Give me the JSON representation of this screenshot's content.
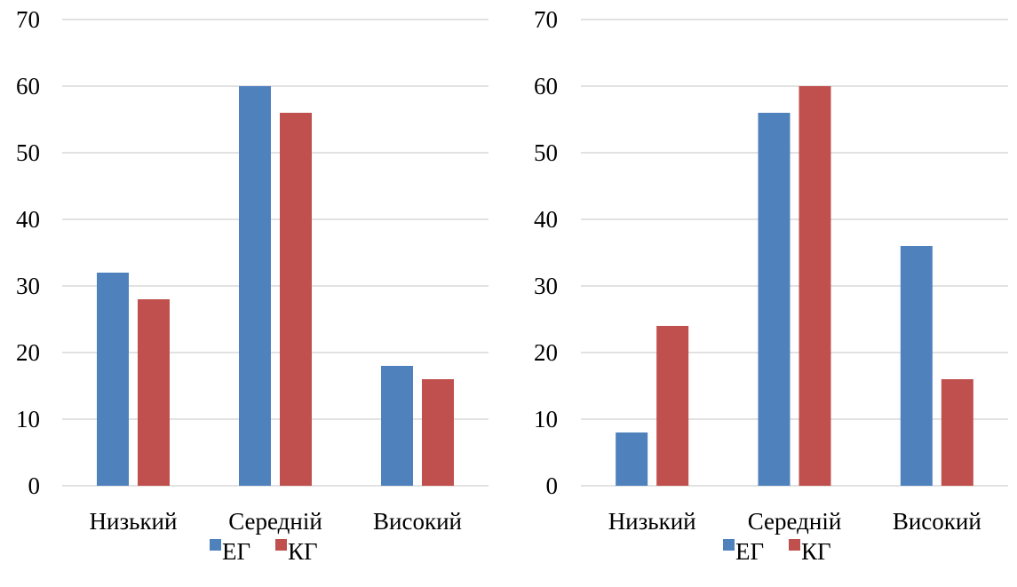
{
  "chart_data": [
    {
      "type": "bar",
      "categories": [
        "Низький",
        "Середній",
        "Високий"
      ],
      "series": [
        {
          "name": "ЕГ",
          "color": "#4F81BD",
          "values": [
            32,
            60,
            18
          ]
        },
        {
          "name": "КГ",
          "color": "#C0504D",
          "values": [
            28,
            56,
            16
          ]
        }
      ],
      "ylim": [
        0,
        70
      ],
      "yticks": [
        0,
        10,
        20,
        30,
        40,
        50,
        60,
        70
      ],
      "grid": true,
      "legend": "bottom"
    },
    {
      "type": "bar",
      "categories": [
        "Низький",
        "Середній",
        "Високий"
      ],
      "series": [
        {
          "name": "ЕГ",
          "color": "#4F81BD",
          "values": [
            8,
            56,
            36
          ]
        },
        {
          "name": "КГ",
          "color": "#C0504D",
          "values": [
            24,
            60,
            16
          ]
        }
      ],
      "ylim": [
        0,
        70
      ],
      "yticks": [
        0,
        10,
        20,
        30,
        40,
        50,
        60,
        70
      ],
      "grid": true,
      "legend": "bottom"
    }
  ]
}
